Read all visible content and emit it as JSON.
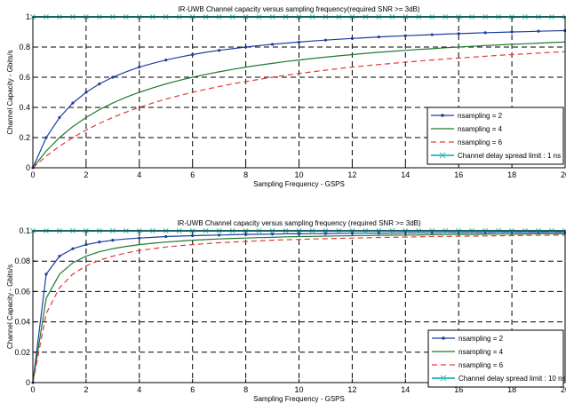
{
  "colors": {
    "ns2": "#1f3f9e",
    "ns4": "#1f7a2f",
    "ns6": "#e03a3a",
    "limit": "#38c0c0",
    "grid": "#000000"
  },
  "chart_data": [
    {
      "type": "line",
      "title": "IR-UWB Channel capacity versus sampling frequency(required SNR >= 3dB)",
      "xlabel": "Sampling Frequency - GSPS",
      "ylabel": "Channel Capacity - Gbits/s",
      "xlim": [
        0,
        20
      ],
      "ylim": [
        0,
        1
      ],
      "grid": true,
      "legend_position": "bottom-right",
      "x_ticks": [
        "0",
        "2",
        "4",
        "6",
        "8",
        "10",
        "12",
        "14",
        "16",
        "18",
        "20"
      ],
      "y_ticks": [
        "0",
        "0.2",
        "0.4",
        "0.6",
        "0.8",
        "1"
      ],
      "x": [
        0,
        0.5,
        1,
        1.5,
        2,
        2.5,
        3,
        3.5,
        4,
        4.5,
        5,
        5.5,
        6,
        6.5,
        7,
        7.5,
        8,
        8.5,
        9,
        9.5,
        10,
        10.5,
        11,
        11.5,
        12,
        12.5,
        13,
        13.5,
        14,
        14.5,
        15,
        15.5,
        16,
        16.5,
        17,
        17.5,
        18,
        18.5,
        19,
        19.5,
        20
      ],
      "series": [
        {
          "name": "nsampling = 2",
          "marker": "dot",
          "values": [
            0,
            0.2,
            0.333,
            0.429,
            0.5,
            0.556,
            0.6,
            0.636,
            0.667,
            0.692,
            0.714,
            0.733,
            0.75,
            0.765,
            0.778,
            0.789,
            0.8,
            0.81,
            0.818,
            0.826,
            0.833,
            0.84,
            0.846,
            0.852,
            0.857,
            0.862,
            0.867,
            0.871,
            0.875,
            0.879,
            0.882,
            0.886,
            0.889,
            0.892,
            0.895,
            0.897,
            0.9,
            0.902,
            0.905,
            0.907,
            0.909
          ]
        },
        {
          "name": "nsampling = 4",
          "marker": "none",
          "values": [
            0,
            0.111,
            0.2,
            0.273,
            0.333,
            0.385,
            0.429,
            0.467,
            0.5,
            0.529,
            0.556,
            0.579,
            0.6,
            0.619,
            0.636,
            0.652,
            0.667,
            0.68,
            0.692,
            0.704,
            0.714,
            0.724,
            0.733,
            0.742,
            0.75,
            0.758,
            0.765,
            0.771,
            0.778,
            0.784,
            0.789,
            0.795,
            0.8,
            0.805,
            0.81,
            0.814,
            0.818,
            0.822,
            0.826,
            0.83,
            0.833
          ]
        },
        {
          "name": "nsampling = 6",
          "marker": "none",
          "dash": true,
          "values": [
            0,
            0.077,
            0.143,
            0.2,
            0.25,
            0.294,
            0.333,
            0.368,
            0.4,
            0.429,
            0.455,
            0.478,
            0.5,
            0.52,
            0.538,
            0.556,
            0.571,
            0.586,
            0.6,
            0.613,
            0.625,
            0.636,
            0.647,
            0.657,
            0.667,
            0.676,
            0.684,
            0.692,
            0.7,
            0.707,
            0.714,
            0.721,
            0.727,
            0.733,
            0.739,
            0.745,
            0.75,
            0.755,
            0.76,
            0.765,
            0.769
          ]
        },
        {
          "name": "Channel delay spread limit : 1 ns",
          "marker": "x",
          "values": [
            1,
            1,
            1,
            1,
            1,
            1,
            1,
            1,
            1,
            1,
            1,
            1,
            1,
            1,
            1,
            1,
            1,
            1,
            1,
            1,
            1,
            1,
            1,
            1,
            1,
            1,
            1,
            1,
            1,
            1,
            1,
            1,
            1,
            1,
            1,
            1,
            1,
            1,
            1,
            1,
            1
          ]
        }
      ]
    },
    {
      "type": "line",
      "title": "IR-UWB Channel capacity versus sampling frequency (required SNR >= 3dB)",
      "xlabel": "Sampling Frequency - GSPS",
      "ylabel": "Channel Capacity - Gbits/s",
      "xlim": [
        0,
        20
      ],
      "ylim": [
        0,
        0.1
      ],
      "grid": true,
      "legend_position": "bottom-right",
      "x_ticks": [
        "0",
        "2",
        "4",
        "6",
        "8",
        "10",
        "12",
        "14",
        "16",
        "18",
        "20"
      ],
      "y_ticks": [
        "0",
        "0.02",
        "0.04",
        "0.06",
        "0.08",
        "0.1"
      ],
      "x": [
        0,
        0.5,
        1,
        1.5,
        2,
        2.5,
        3,
        3.5,
        4,
        4.5,
        5,
        5.5,
        6,
        6.5,
        7,
        7.5,
        8,
        8.5,
        9,
        9.5,
        10,
        10.5,
        11,
        11.5,
        12,
        12.5,
        13,
        13.5,
        14,
        14.5,
        15,
        15.5,
        16,
        16.5,
        17,
        17.5,
        18,
        18.5,
        19,
        19.5,
        20
      ],
      "series": [
        {
          "name": "nsampling = 2",
          "marker": "dot",
          "values": [
            0,
            0.0714,
            0.0833,
            0.0882,
            0.0909,
            0.0926,
            0.0938,
            0.0946,
            0.0952,
            0.0957,
            0.0962,
            0.0965,
            0.0968,
            0.097,
            0.0972,
            0.0974,
            0.0976,
            0.0977,
            0.0978,
            0.098,
            0.098,
            0.0981,
            0.0982,
            0.0983,
            0.0984,
            0.0984,
            0.0985,
            0.0985,
            0.0986,
            0.0986,
            0.0987,
            0.0987,
            0.0988,
            0.0988,
            0.0988,
            0.0989,
            0.0989,
            0.0989,
            0.099,
            0.099,
            0.099
          ]
        },
        {
          "name": "nsampling = 4",
          "marker": "none",
          "values": [
            0,
            0.0556,
            0.0714,
            0.0789,
            0.0833,
            0.0862,
            0.0882,
            0.0897,
            0.0909,
            0.0918,
            0.0926,
            0.0932,
            0.0938,
            0.0942,
            0.0946,
            0.095,
            0.0952,
            0.0955,
            0.0957,
            0.096,
            0.0962,
            0.0963,
            0.0965,
            0.0966,
            0.0968,
            0.0969,
            0.097,
            0.0971,
            0.0972,
            0.0973,
            0.0974,
            0.0975,
            0.0976,
            0.0976,
            0.0977,
            0.0978,
            0.0978,
            0.0979,
            0.098,
            0.098,
            0.098
          ]
        },
        {
          "name": "nsampling = 6",
          "marker": "none",
          "dash": true,
          "values": [
            0,
            0.0455,
            0.0625,
            0.0714,
            0.0769,
            0.0806,
            0.0833,
            0.0854,
            0.087,
            0.0882,
            0.0893,
            0.0902,
            0.0909,
            0.0915,
            0.0921,
            0.0926,
            0.093,
            0.0934,
            0.0938,
            0.0941,
            0.0943,
            0.0946,
            0.0948,
            0.095,
            0.0952,
            0.0954,
            0.0956,
            0.0957,
            0.0959,
            0.096,
            0.0962,
            0.0963,
            0.0964,
            0.0965,
            0.0966,
            0.0967,
            0.0968,
            0.0969,
            0.097,
            0.0971,
            0.0972
          ]
        },
        {
          "name": "Channel delay spread limit : 10 ns",
          "marker": "x",
          "values": [
            0.1,
            0.1,
            0.1,
            0.1,
            0.1,
            0.1,
            0.1,
            0.1,
            0.1,
            0.1,
            0.1,
            0.1,
            0.1,
            0.1,
            0.1,
            0.1,
            0.1,
            0.1,
            0.1,
            0.1,
            0.1,
            0.1,
            0.1,
            0.1,
            0.1,
            0.1,
            0.1,
            0.1,
            0.1,
            0.1,
            0.1,
            0.1,
            0.1,
            0.1,
            0.1,
            0.1,
            0.1,
            0.1,
            0.1,
            0.1,
            0.1
          ]
        }
      ]
    }
  ]
}
